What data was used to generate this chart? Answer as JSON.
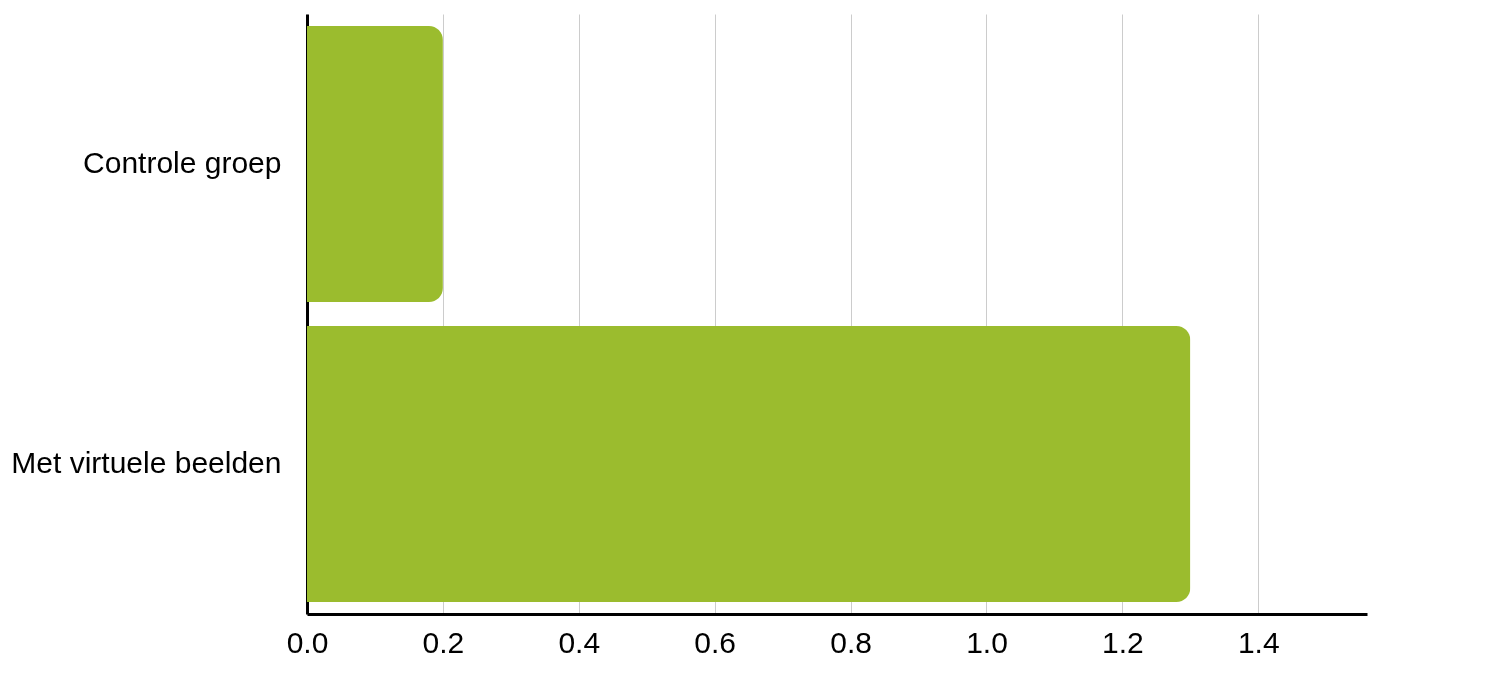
{
  "chart_data": {
    "type": "bar",
    "orientation": "horizontal",
    "categories": [
      "Controle groep",
      "Met virtuele beelden"
    ],
    "values": [
      0.2,
      1.3
    ],
    "color": "#9bbc2e",
    "xlim": [
      0,
      1.56
    ],
    "xticks": [
      {
        "value": 0,
        "label": "0.0"
      },
      {
        "value": 0.2,
        "label": "0.2"
      },
      {
        "value": 0.4,
        "label": "0.4"
      },
      {
        "value": 0.6,
        "label": "0.6"
      },
      {
        "value": 0.8,
        "label": "0.8"
      },
      {
        "value": 1.0,
        "label": "1.0"
      },
      {
        "value": 1.2,
        "label": "1.2"
      },
      {
        "value": 1.4,
        "label": "1.4"
      }
    ],
    "grid": "x"
  }
}
